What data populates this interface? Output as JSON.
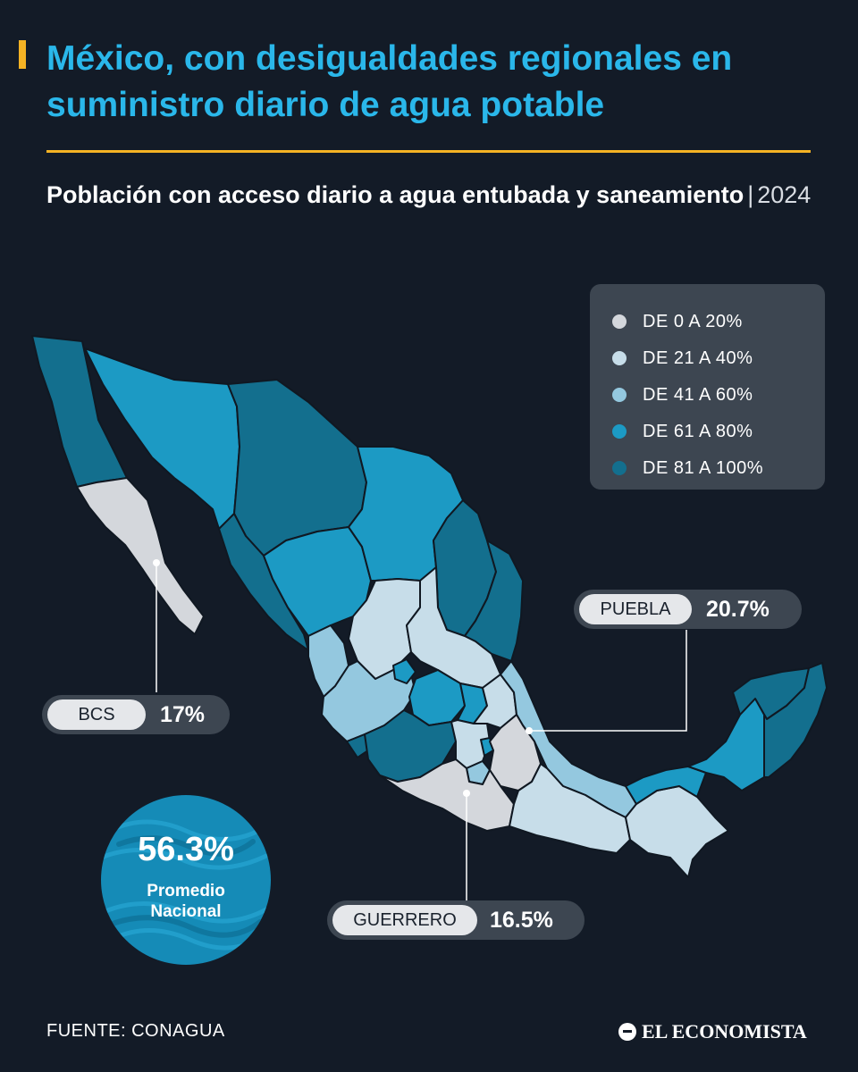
{
  "header": {
    "title": "México, con desigualdades regionales en suministro diario de agua potable",
    "subtitle": "Población con acceso diario a agua entubada y saneamiento",
    "year": "2024"
  },
  "legend": [
    {
      "label": "DE 0 A 20%",
      "color": "#d4d7dc"
    },
    {
      "label": "DE 21 A 40%",
      "color": "#c7dde9"
    },
    {
      "label": "DE 41 A 60%",
      "color": "#94c8df"
    },
    {
      "label": "DE 61 A 80%",
      "color": "#1c9ac4"
    },
    {
      "label": "DE 81 A 100%",
      "color": "#136f8e"
    }
  ],
  "callouts": {
    "puebla": {
      "name": "PUEBLA",
      "value": "20.7%"
    },
    "bcs": {
      "name": "BCS",
      "value": "17%"
    },
    "guerrero": {
      "name": "GUERRERO",
      "value": "16.5%"
    }
  },
  "national": {
    "value": "56.3%",
    "label": "Promedio Nacional"
  },
  "footer": {
    "source": "FUENTE: CONAGUA",
    "brand": "EL ECONOMISTA"
  }
}
